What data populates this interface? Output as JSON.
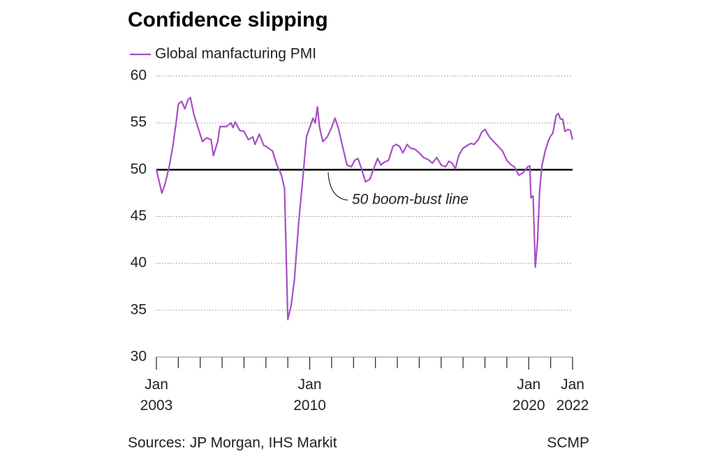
{
  "chart_data": {
    "type": "line",
    "title": "Confidence slipping",
    "annotation": "50 boom-bust line",
    "source": "Sources: JP Morgan, IHS Markit",
    "credit": "SCMP",
    "x": [
      2003.0,
      2003.25,
      2003.4,
      2003.6,
      2003.75,
      2003.9,
      2004.0,
      2004.15,
      2004.3,
      2004.45,
      2004.55,
      2004.7,
      2004.9,
      2005.1,
      2005.3,
      2005.5,
      2005.6,
      2005.8,
      2005.9,
      2006.2,
      2006.4,
      2006.5,
      2006.6,
      2006.8,
      2007.0,
      2007.2,
      2007.4,
      2007.5,
      2007.7,
      2007.9,
      2008.0,
      2008.3,
      2008.5,
      2008.7,
      2008.85,
      2009.0,
      2009.15,
      2009.3,
      2009.5,
      2009.7,
      2009.85,
      2010.0,
      2010.15,
      2010.25,
      2010.35,
      2010.45,
      2010.6,
      2010.8,
      2011.0,
      2011.15,
      2011.3,
      2011.5,
      2011.7,
      2011.9,
      2012.05,
      2012.2,
      2012.35,
      2012.55,
      2012.75,
      2012.95,
      2013.1,
      2013.25,
      2013.4,
      2013.6,
      2013.8,
      2013.95,
      2014.1,
      2014.25,
      2014.45,
      2014.6,
      2014.8,
      2015.0,
      2015.2,
      2015.4,
      2015.6,
      2015.8,
      2016.0,
      2016.2,
      2016.35,
      2016.5,
      2016.65,
      2016.8,
      2017.0,
      2017.2,
      2017.35,
      2017.5,
      2017.7,
      2017.85,
      2018.0,
      2018.2,
      2018.4,
      2018.6,
      2018.8,
      2019.0,
      2019.2,
      2019.35,
      2019.55,
      2019.75,
      2019.95,
      2020.05,
      2020.1,
      2020.2,
      2020.3,
      2020.4,
      2020.5,
      2020.6,
      2020.75,
      2020.9,
      2021.0,
      2021.1,
      2021.25,
      2021.35,
      2021.45,
      2021.55,
      2021.65,
      2021.8,
      2021.9,
      2022.0
    ],
    "series": [
      {
        "name": "Global manfacturing PMI",
        "color": "#a64fc4",
        "values": [
          50,
          47.5,
          48.5,
          50.5,
          52.5,
          55,
          57,
          57.3,
          56.5,
          57.5,
          57.7,
          56,
          54.5,
          53,
          53.4,
          53.2,
          51.5,
          53,
          54.6,
          54.6,
          55,
          54.5,
          55.1,
          54.2,
          54.1,
          53.2,
          53.5,
          52.7,
          53.8,
          52.6,
          52.5,
          52,
          50.5,
          49.5,
          48,
          34,
          35.5,
          38.2,
          44.5,
          49.5,
          53.5,
          54.5,
          55.5,
          55,
          56.7,
          54.5,
          53,
          53.5,
          54.5,
          55.5,
          54.5,
          52.5,
          50.5,
          50.3,
          51,
          51.2,
          50.2,
          48.7,
          49,
          50.3,
          51.2,
          50.5,
          50.8,
          51,
          52.5,
          52.7,
          52.5,
          51.8,
          52.7,
          52.3,
          52.2,
          51.8,
          51.3,
          51.1,
          50.7,
          51.3,
          50.5,
          50.3,
          50.9,
          50.7,
          50.1,
          51.5,
          52.3,
          52.6,
          52.8,
          52.7,
          53.2,
          54,
          54.3,
          53.5,
          53,
          52.5,
          52,
          51,
          50.5,
          50.3,
          49.4,
          49.7,
          50.3,
          50.4,
          47,
          47.2,
          39.6,
          42.4,
          47.8,
          50.4,
          52,
          53.1,
          53.6,
          53.9,
          55.8,
          56,
          55.4,
          55.4,
          54.1,
          54.3,
          54.2,
          53.2
        ]
      }
    ],
    "xlim": [
      2003,
      2022
    ],
    "xticks": [
      {
        "value": 2003,
        "label": "Jan 2003"
      },
      {
        "value": 2010,
        "label": "Jan 2010"
      },
      {
        "value": 2020,
        "label": "Jan 2020"
      },
      {
        "value": 2022,
        "label": "Jan 2022"
      }
    ],
    "xminorticks": [
      2004,
      2005,
      2006,
      2007,
      2008,
      2009,
      2011,
      2012,
      2013,
      2014,
      2015,
      2016,
      2017,
      2018,
      2019,
      2021
    ],
    "ylim": [
      30,
      60
    ],
    "yticks": [
      30,
      35,
      40,
      45,
      50,
      55,
      60
    ],
    "reference_line": 50,
    "grid": true,
    "legend": "top-left"
  }
}
